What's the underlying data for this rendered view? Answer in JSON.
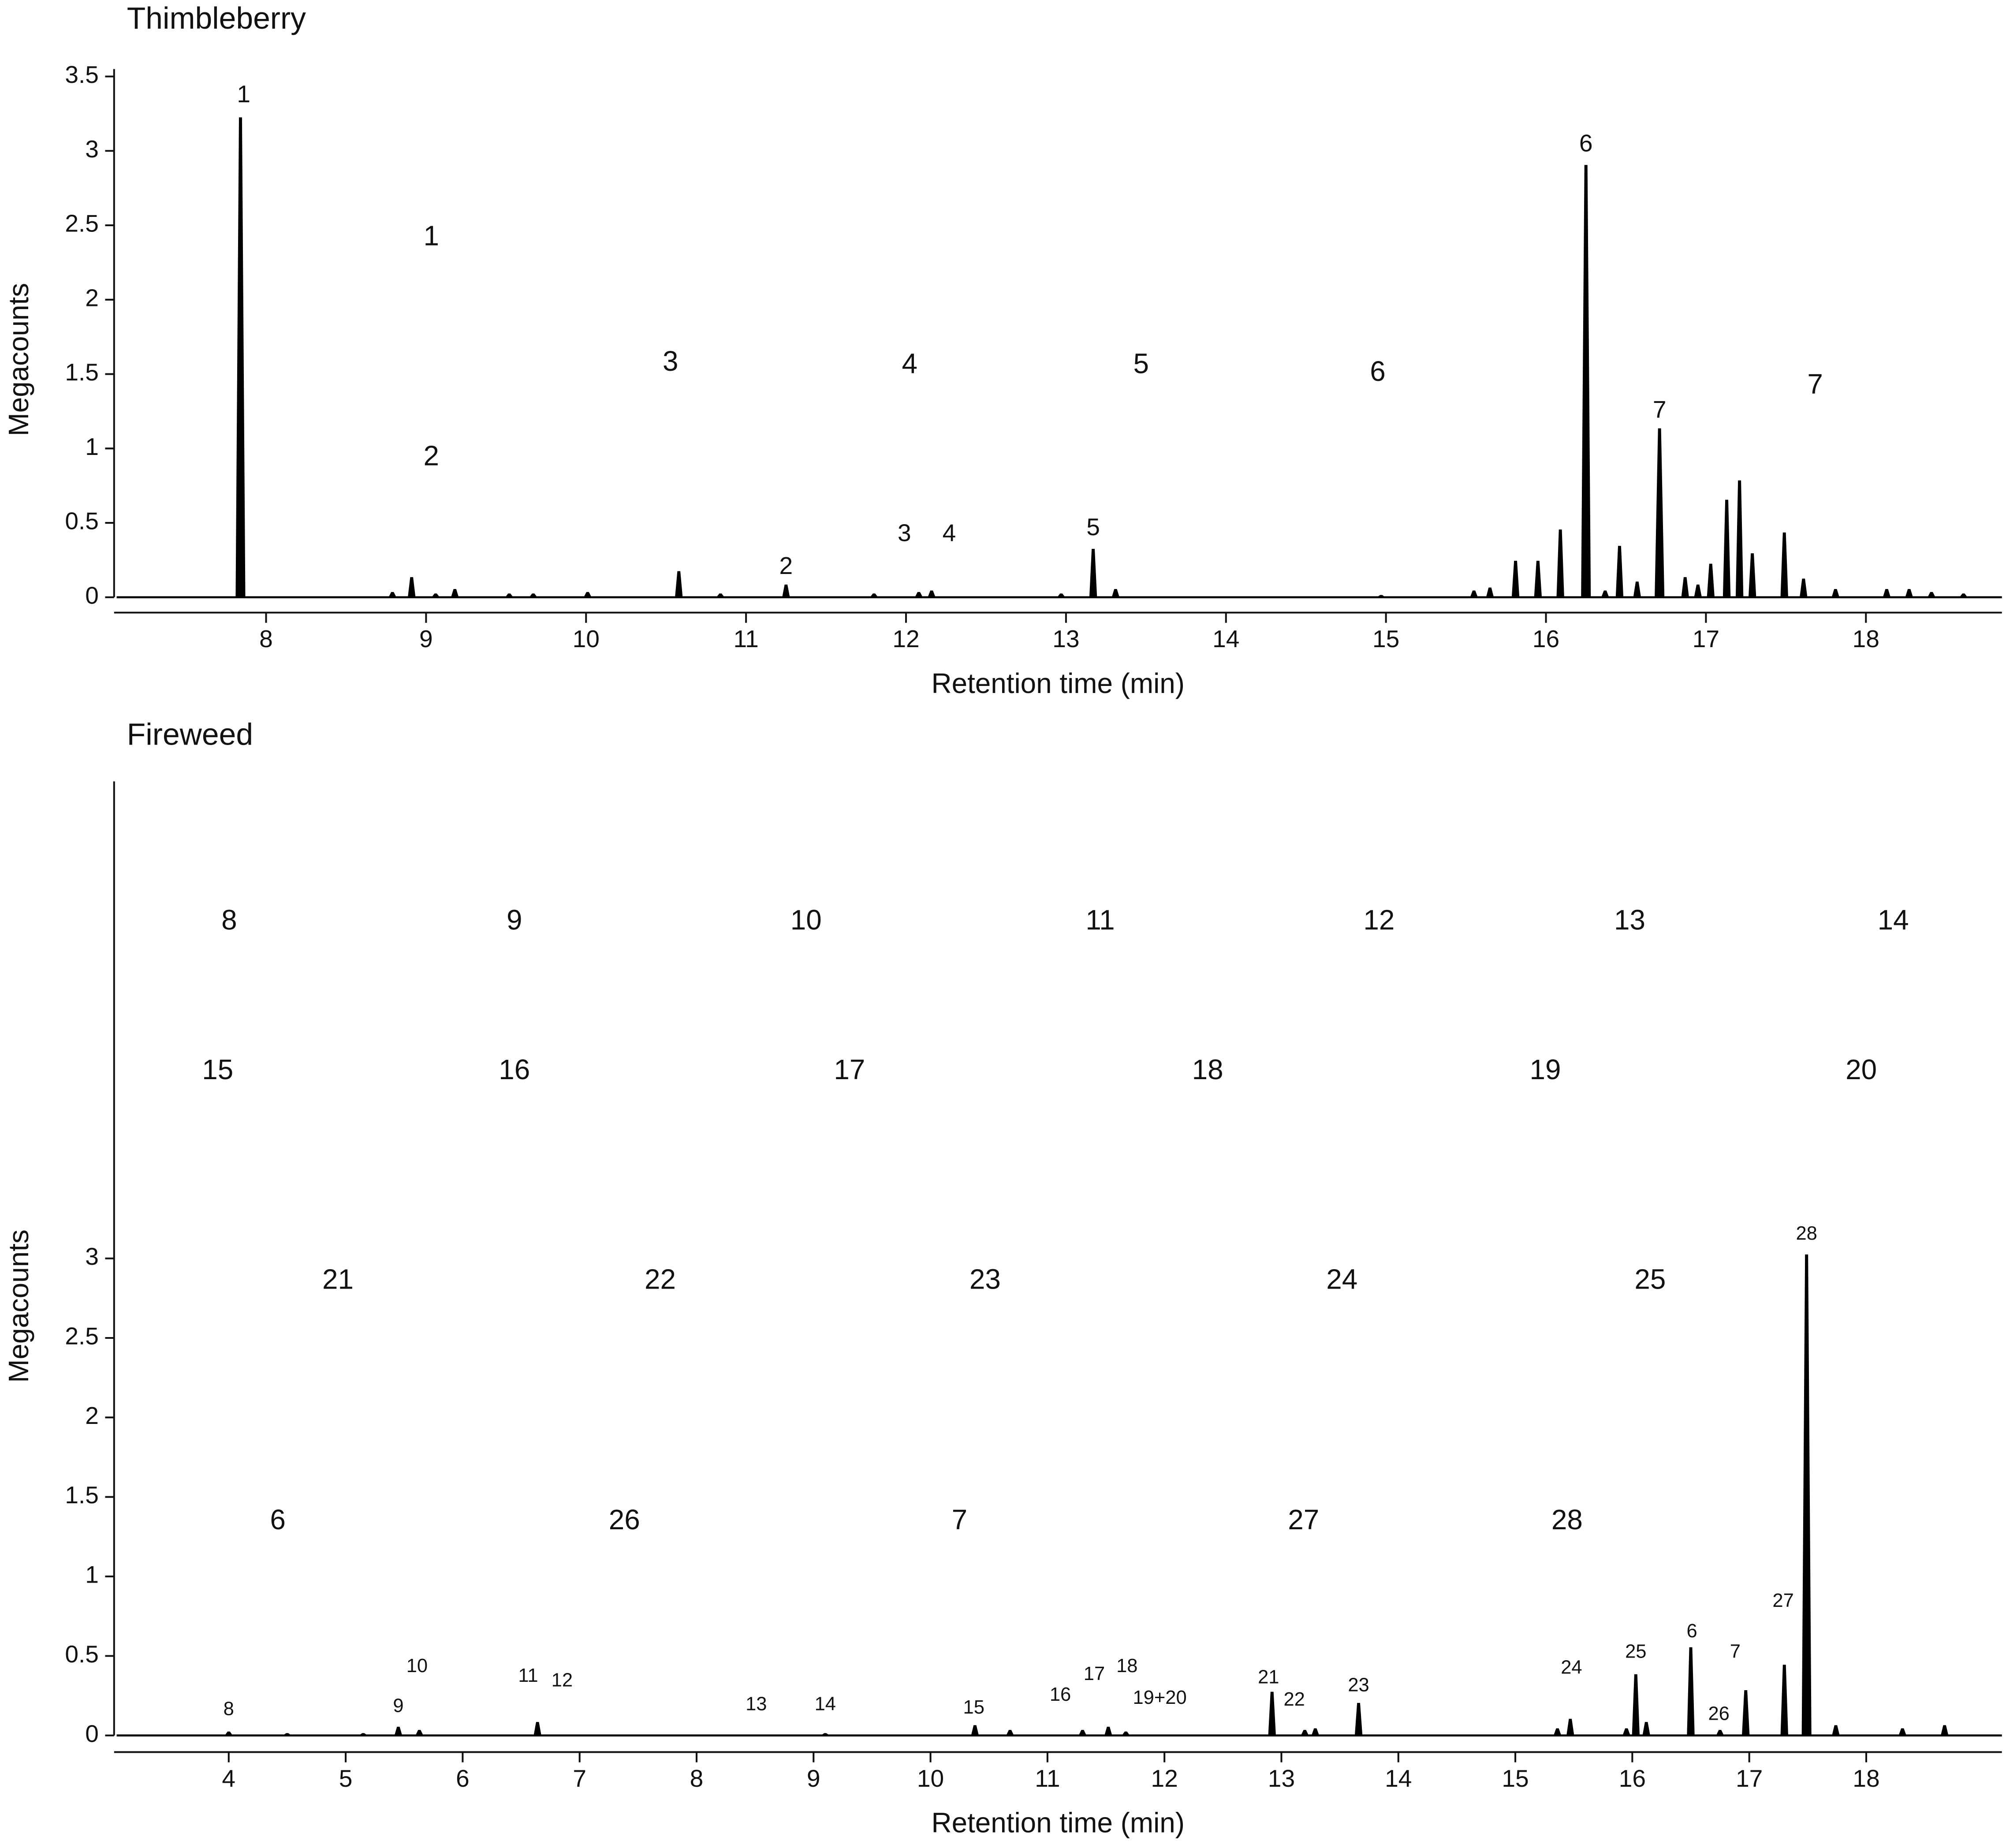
{
  "chart_data": [
    {
      "type": "chromatogram",
      "title": "Thimbleberry",
      "xlabel": "Retention time (min)",
      "ylabel": "Megacounts",
      "color": "#000000",
      "x": [
        7.84,
        8.79,
        8.91,
        9.06,
        9.18,
        9.52,
        9.67,
        10.01,
        10.58,
        10.84,
        11.25,
        11.8,
        12.08,
        12.16,
        12.97,
        13.17,
        13.31,
        14.97,
        15.55,
        15.65,
        15.81,
        15.95,
        16.09,
        16.25,
        16.37,
        16.46,
        16.57,
        16.71,
        16.87,
        16.95,
        17.03,
        17.13,
        17.21,
        17.29,
        17.49,
        17.61,
        17.81,
        18.13,
        18.27,
        18.41,
        18.61
      ],
      "values": [
        3.22,
        0.03,
        0.13,
        0.02,
        0.05,
        0.02,
        0.02,
        0.03,
        0.17,
        0.02,
        0.08,
        0.02,
        0.03,
        0.04,
        0.02,
        0.32,
        0.05,
        0.01,
        0.04,
        0.06,
        0.24,
        0.24,
        0.45,
        2.9,
        0.04,
        0.34,
        0.1,
        1.13,
        0.13,
        0.08,
        0.22,
        0.65,
        0.78,
        0.29,
        0.43,
        0.12,
        0.05,
        0.05,
        0.05,
        0.03,
        0.02
      ],
      "xlim": [
        7.05,
        18.85
      ],
      "xticks": [
        8,
        9,
        10,
        11,
        12,
        13,
        14,
        15,
        16,
        17,
        18
      ],
      "ylim": [
        0,
        3.55
      ],
      "yticks": [
        0,
        0.5,
        1,
        1.5,
        2,
        2.5,
        3,
        3.5
      ],
      "peak_labels": [
        {
          "text": "1",
          "x": 7.86,
          "y": 3.37
        },
        {
          "text": "2",
          "x": 11.25,
          "y": 0.2
        },
        {
          "text": "3",
          "x": 11.99,
          "y": 0.42
        },
        {
          "text": "4",
          "x": 12.27,
          "y": 0.42
        },
        {
          "text": "5",
          "x": 13.17,
          "y": 0.46
        },
        {
          "text": "6",
          "x": 16.25,
          "y": 3.04
        },
        {
          "text": "7",
          "x": 16.71,
          "y": 1.25
        }
      ],
      "structure_labels": [
        "1",
        "2",
        "3",
        "4",
        "5",
        "6",
        "7"
      ]
    },
    {
      "type": "chromatogram",
      "title": "Fireweed",
      "xlabel": "Retention time (min)",
      "ylabel": "Megacounts",
      "color": "#000000",
      "x": [
        4.0,
        4.5,
        5.15,
        5.45,
        5.63,
        6.64,
        9.1,
        10.38,
        10.68,
        11.3,
        11.52,
        11.67,
        12.92,
        13.2,
        13.29,
        13.66,
        15.36,
        15.47,
        15.95,
        16.03,
        16.12,
        16.5,
        16.75,
        16.97,
        17.3,
        17.49,
        17.74,
        18.31,
        18.67
      ],
      "values": [
        0.02,
        0.01,
        0.01,
        0.05,
        0.03,
        0.08,
        0.01,
        0.06,
        0.03,
        0.03,
        0.05,
        0.02,
        0.27,
        0.03,
        0.04,
        0.2,
        0.04,
        0.1,
        0.04,
        0.38,
        0.08,
        0.55,
        0.03,
        0.28,
        0.44,
        3.02,
        0.06,
        0.04,
        0.06
      ],
      "xlim": [
        3.02,
        19.16
      ],
      "xticks": [
        4,
        5,
        6,
        7,
        8,
        9,
        10,
        11,
        12,
        13,
        14,
        15,
        16,
        17,
        18
      ],
      "ylim": [
        0,
        6
      ],
      "yticks": [
        0,
        0.5,
        1,
        1.5,
        2,
        2.5,
        3
      ],
      "peak_labels": [
        {
          "text": "8",
          "x": 4.0,
          "y": 0.16
        },
        {
          "text": "9",
          "x": 5.45,
          "y": 0.18
        },
        {
          "text": "10",
          "x": 5.61,
          "y": 0.43
        },
        {
          "text": "11",
          "x": 6.56,
          "y": 0.37
        },
        {
          "text": "12",
          "x": 6.85,
          "y": 0.34
        },
        {
          "text": "13",
          "x": 8.51,
          "y": 0.19
        },
        {
          "text": "14",
          "x": 9.1,
          "y": 0.19
        },
        {
          "text": "15",
          "x": 10.37,
          "y": 0.17
        },
        {
          "text": "16",
          "x": 11.11,
          "y": 0.25
        },
        {
          "text": "17",
          "x": 11.4,
          "y": 0.38
        },
        {
          "text": "18",
          "x": 11.68,
          "y": 0.43
        },
        {
          "text": "19+20",
          "x": 11.96,
          "y": 0.23
        },
        {
          "text": "21",
          "x": 12.89,
          "y": 0.36
        },
        {
          "text": "22",
          "x": 13.11,
          "y": 0.22
        },
        {
          "text": "23",
          "x": 13.66,
          "y": 0.31
        },
        {
          "text": "24",
          "x": 15.48,
          "y": 0.42
        },
        {
          "text": "25",
          "x": 16.03,
          "y": 0.52
        },
        {
          "text": "6",
          "x": 16.51,
          "y": 0.65
        },
        {
          "text": "26",
          "x": 16.74,
          "y": 0.13
        },
        {
          "text": "7",
          "x": 16.88,
          "y": 0.52
        },
        {
          "text": "27",
          "x": 17.29,
          "y": 0.84
        },
        {
          "text": "28",
          "x": 17.49,
          "y": 3.15
        }
      ],
      "structure_labels": [
        "8",
        "9",
        "10",
        "11",
        "12",
        "13",
        "14",
        "15",
        "16",
        "17",
        "18",
        "19",
        "20",
        "21",
        "22",
        "23",
        "24",
        "25",
        "6",
        "26",
        "7",
        "27",
        "28"
      ]
    }
  ]
}
